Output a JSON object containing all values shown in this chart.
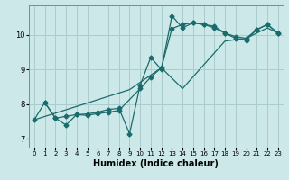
{
  "xlabel": "Humidex (Indice chaleur)",
  "background_color": "#cce8e8",
  "grid_color": "#aacccc",
  "line_color": "#1a6b6b",
  "xlim": [
    -0.5,
    23.5
  ],
  "ylim": [
    6.75,
    10.85
  ],
  "xticks": [
    0,
    1,
    2,
    3,
    4,
    5,
    6,
    7,
    8,
    9,
    10,
    11,
    12,
    13,
    14,
    15,
    16,
    17,
    18,
    19,
    20,
    21,
    22,
    23
  ],
  "yticks": [
    7,
    8,
    9,
    10
  ],
  "line1_x": [
    0,
    1,
    2,
    3,
    4,
    5,
    6,
    7,
    8,
    9,
    10,
    11,
    12,
    13,
    14,
    15,
    16,
    17,
    18,
    19,
    20,
    21,
    22,
    23
  ],
  "line1_y": [
    7.55,
    8.05,
    7.6,
    7.65,
    7.7,
    7.72,
    7.77,
    7.85,
    7.88,
    7.15,
    8.55,
    9.35,
    9.0,
    10.55,
    10.2,
    10.35,
    10.3,
    10.2,
    10.05,
    9.9,
    9.85,
    10.15,
    10.3,
    10.05
  ],
  "line2_x": [
    1,
    2,
    3,
    4,
    5,
    6,
    7,
    8,
    10,
    11,
    12,
    13,
    14,
    15,
    16,
    17,
    18,
    19,
    20,
    21,
    22,
    23
  ],
  "line2_y": [
    8.05,
    7.6,
    7.4,
    7.7,
    7.68,
    7.73,
    7.77,
    7.82,
    8.45,
    8.78,
    9.05,
    10.18,
    10.3,
    10.35,
    10.3,
    10.25,
    10.05,
    9.95,
    9.9,
    10.15,
    10.3,
    10.05
  ],
  "line3_x": [
    0,
    9,
    12,
    14,
    18,
    20,
    21,
    22,
    23
  ],
  "line3_y": [
    7.55,
    8.42,
    9.05,
    8.45,
    9.82,
    9.9,
    10.05,
    10.2,
    10.05
  ]
}
